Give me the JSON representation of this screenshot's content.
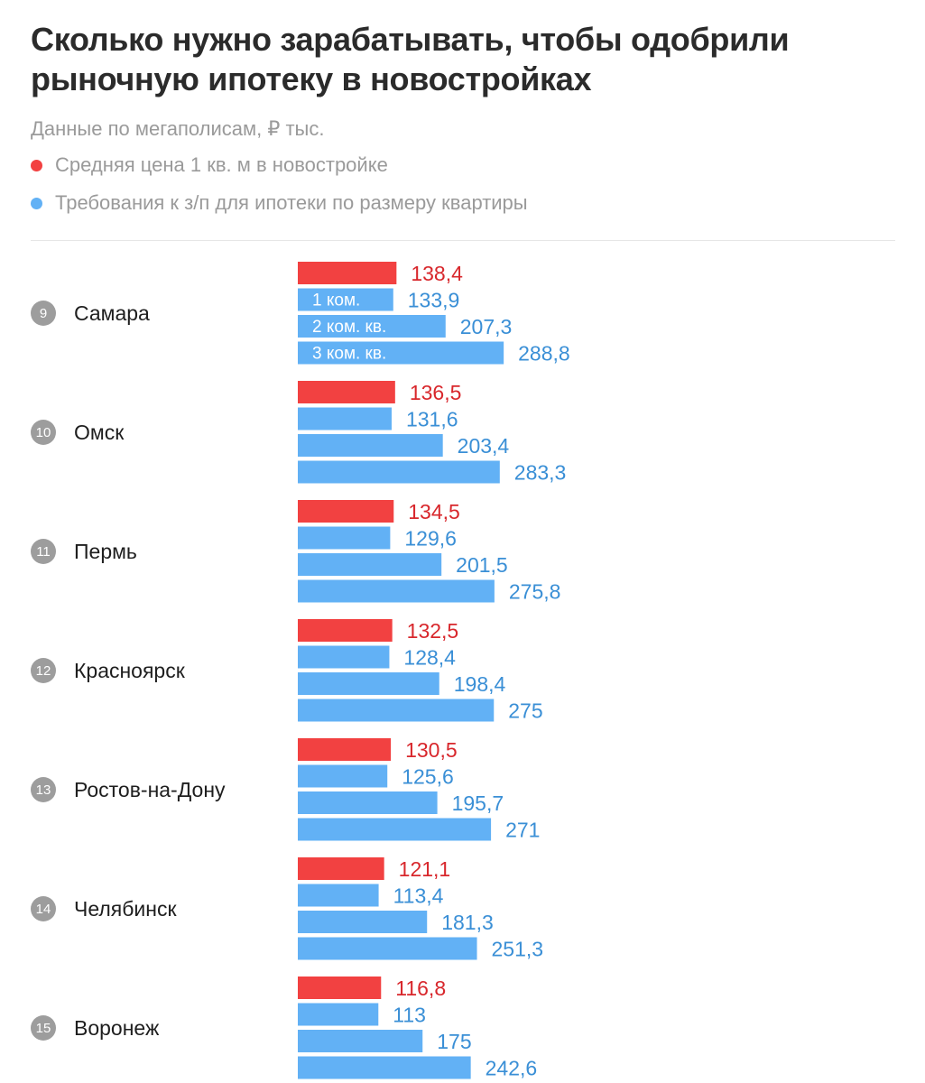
{
  "header": {
    "title": "Сколько нужно зарабатывать, чтобы одобрили рыночную ипотеку в новостройках",
    "subtitle": "Данные по мегаполисам, ₽ тыс."
  },
  "colors": {
    "price": "#f24141",
    "salary": "#62b1f5",
    "price_label": "#d8272c",
    "salary_label": "#3a8fd6"
  },
  "chart_data": {
    "type": "bar",
    "orientation": "horizontal",
    "legend": [
      "Средняя цена 1 кв. м в новостройке",
      "Требования к з/п для ипотеки по размеру квартиры"
    ],
    "legend_position": "top-left",
    "bar_inner_labels": [
      "1 ком.",
      "2 ком. кв.",
      "3 ком. кв."
    ],
    "categories": [
      {
        "rank": "9",
        "city": "Самара",
        "price": 138.4,
        "salary": [
          133.9,
          207.3,
          288.8
        ],
        "price_label": "138,4",
        "salary_labels": [
          "133,9",
          "207,3",
          "288,8"
        ]
      },
      {
        "rank": "10",
        "city": "Омск",
        "price": 136.5,
        "salary": [
          131.6,
          203.4,
          283.3
        ],
        "price_label": "136,5",
        "salary_labels": [
          "131,6",
          "203,4",
          "283,3"
        ]
      },
      {
        "rank": "11",
        "city": "Пермь",
        "price": 134.5,
        "salary": [
          129.6,
          201.5,
          275.8
        ],
        "price_label": "134,5",
        "salary_labels": [
          "129,6",
          "201,5",
          "275,8"
        ]
      },
      {
        "rank": "12",
        "city": "Красноярск",
        "price": 132.5,
        "salary": [
          128.4,
          198.4,
          275
        ],
        "price_label": "132,5",
        "salary_labels": [
          "128,4",
          "198,4",
          "275"
        ]
      },
      {
        "rank": "13",
        "city": "Ростов-на-Дону",
        "price": 130.5,
        "salary": [
          125.6,
          195.7,
          271
        ],
        "price_label": "130,5",
        "salary_labels": [
          "125,6",
          "195,7",
          "271"
        ]
      },
      {
        "rank": "14",
        "city": "Челябинск",
        "price": 121.1,
        "salary": [
          113.4,
          181.3,
          251.3
        ],
        "price_label": "121,1",
        "salary_labels": [
          "113,4",
          "181,3",
          "251,3"
        ]
      },
      {
        "rank": "15",
        "city": "Воронеж",
        "price": 116.8,
        "salary": [
          113,
          175,
          242.6
        ],
        "price_label": "116,8",
        "salary_labels": [
          "113",
          "175",
          "242,6"
        ]
      }
    ]
  }
}
